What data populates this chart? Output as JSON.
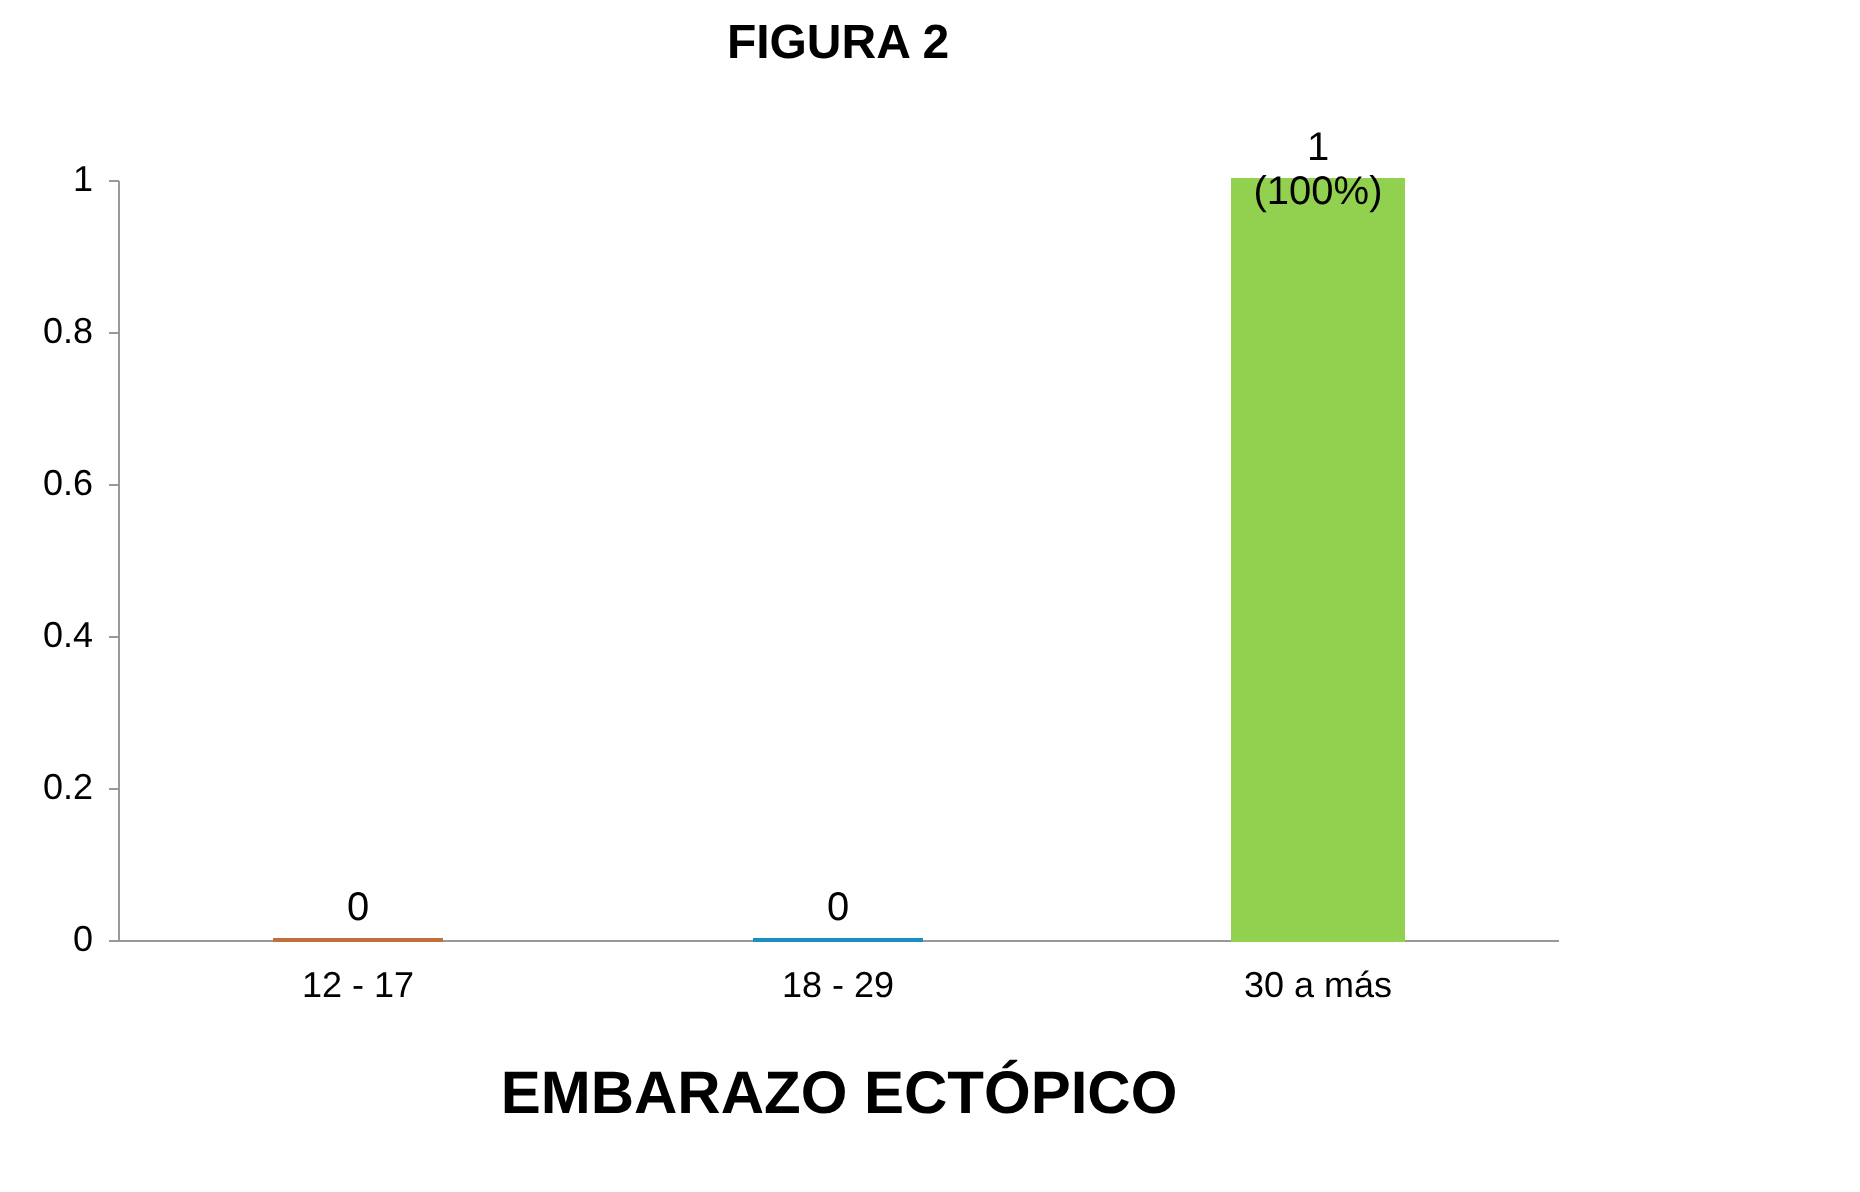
{
  "chart_data": {
    "type": "bar",
    "title": "FIGURA 2",
    "xlabel": "EMBARAZO ECTÓPICO",
    "categories": [
      "12 - 17",
      "18 - 29",
      "30 a más"
    ],
    "values": [
      0,
      0,
      1
    ],
    "colors": [
      "#c0703a",
      "#1a8fc0",
      "#92d050"
    ],
    "value_labels": [
      "0",
      "0",
      "1\n(100%)"
    ],
    "ylim": [
      0,
      1
    ],
    "yticks": [
      0,
      0.2,
      0.4,
      0.6,
      0.8,
      1
    ],
    "grid": false
  }
}
